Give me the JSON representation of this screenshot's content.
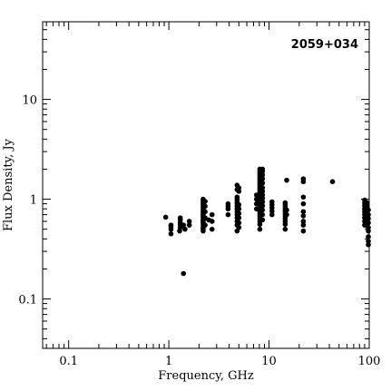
{
  "chart_data": {
    "type": "scatter",
    "title": "2059+034",
    "xlabel": "Frequency, GHz",
    "ylabel": "Flux Density, Jy",
    "xscale": "log",
    "yscale": "log",
    "xlim": [
      0.055,
      100
    ],
    "ylim": [
      0.032,
      60
    ],
    "xticklabels": [
      "0.1",
      "1",
      "10",
      "100"
    ],
    "yticklabels": [
      "0.1",
      "1",
      "10"
    ],
    "grid": false,
    "marker_color": "#000000",
    "points": [
      [
        0.93,
        0.66
      ],
      [
        1.05,
        0.45
      ],
      [
        1.05,
        0.5
      ],
      [
        1.05,
        0.53
      ],
      [
        1.05,
        0.55
      ],
      [
        1.28,
        0.48
      ],
      [
        1.3,
        0.52
      ],
      [
        1.3,
        0.55
      ],
      [
        1.3,
        0.58
      ],
      [
        1.3,
        0.62
      ],
      [
        1.3,
        0.65
      ],
      [
        1.4,
        0.18
      ],
      [
        1.4,
        0.55
      ],
      [
        1.45,
        0.5
      ],
      [
        1.6,
        0.55
      ],
      [
        1.6,
        0.6
      ],
      [
        2.2,
        0.48
      ],
      [
        2.2,
        0.5
      ],
      [
        2.2,
        0.52
      ],
      [
        2.2,
        0.55
      ],
      [
        2.2,
        0.58
      ],
      [
        2.2,
        0.6
      ],
      [
        2.2,
        0.62
      ],
      [
        2.2,
        0.65
      ],
      [
        2.2,
        0.68
      ],
      [
        2.2,
        0.7
      ],
      [
        2.2,
        0.73
      ],
      [
        2.2,
        0.76
      ],
      [
        2.2,
        0.8
      ],
      [
        2.2,
        0.84
      ],
      [
        2.2,
        0.88
      ],
      [
        2.2,
        0.92
      ],
      [
        2.2,
        0.96
      ],
      [
        2.2,
        1.0
      ],
      [
        2.3,
        0.55
      ],
      [
        2.3,
        0.65
      ],
      [
        2.3,
        0.75
      ],
      [
        2.3,
        0.85
      ],
      [
        2.3,
        0.95
      ],
      [
        2.5,
        0.62
      ],
      [
        2.7,
        0.6
      ],
      [
        2.7,
        0.5
      ],
      [
        2.7,
        0.7
      ],
      [
        3.9,
        0.7
      ],
      [
        3.9,
        0.8
      ],
      [
        3.9,
        0.85
      ],
      [
        3.9,
        0.9
      ],
      [
        4.8,
        0.48
      ],
      [
        4.8,
        0.55
      ],
      [
        4.8,
        0.6
      ],
      [
        4.8,
        0.65
      ],
      [
        4.8,
        0.7
      ],
      [
        4.8,
        0.75
      ],
      [
        4.8,
        0.8
      ],
      [
        4.8,
        0.85
      ],
      [
        4.8,
        0.9
      ],
      [
        4.8,
        0.95
      ],
      [
        4.8,
        1.0
      ],
      [
        4.8,
        1.05
      ],
      [
        4.8,
        1.25
      ],
      [
        4.8,
        1.38
      ],
      [
        5.0,
        1.3
      ],
      [
        5.0,
        0.52
      ],
      [
        5.0,
        0.58
      ],
      [
        5.0,
        0.65
      ],
      [
        5.0,
        0.72
      ],
      [
        5.0,
        0.8
      ],
      [
        5.0,
        0.88
      ],
      [
        5.0,
        1.2
      ],
      [
        7.5,
        0.8
      ],
      [
        7.5,
        0.9
      ],
      [
        7.5,
        1.0
      ],
      [
        7.5,
        1.1
      ],
      [
        8.1,
        0.5
      ],
      [
        8.1,
        0.56
      ],
      [
        8.1,
        0.6
      ],
      [
        8.1,
        0.64
      ],
      [
        8.1,
        0.68
      ],
      [
        8.1,
        0.72
      ],
      [
        8.1,
        0.76
      ],
      [
        8.1,
        0.8
      ],
      [
        8.1,
        0.84
      ],
      [
        8.1,
        0.88
      ],
      [
        8.1,
        0.92
      ],
      [
        8.1,
        0.96
      ],
      [
        8.1,
        1.0
      ],
      [
        8.1,
        1.05
      ],
      [
        8.1,
        1.1
      ],
      [
        8.1,
        1.16
      ],
      [
        8.1,
        1.22
      ],
      [
        8.1,
        1.28
      ],
      [
        8.1,
        1.34
      ],
      [
        8.1,
        1.4
      ],
      [
        8.1,
        1.47
      ],
      [
        8.1,
        1.54
      ],
      [
        8.1,
        1.61
      ],
      [
        8.1,
        1.68
      ],
      [
        8.1,
        1.75
      ],
      [
        8.1,
        1.83
      ],
      [
        8.1,
        1.91
      ],
      [
        8.1,
        2.0
      ],
      [
        8.6,
        0.62
      ],
      [
        8.6,
        0.7
      ],
      [
        8.6,
        0.78
      ],
      [
        8.6,
        0.86
      ],
      [
        8.6,
        0.94
      ],
      [
        8.6,
        1.02
      ],
      [
        8.6,
        1.1
      ],
      [
        8.6,
        1.2
      ],
      [
        8.6,
        1.3
      ],
      [
        8.6,
        1.45
      ],
      [
        8.6,
        1.6
      ],
      [
        8.6,
        1.75
      ],
      [
        8.6,
        1.9
      ],
      [
        8.6,
        2.0
      ],
      [
        10.7,
        0.7
      ],
      [
        10.7,
        0.76
      ],
      [
        10.7,
        0.82
      ],
      [
        10.7,
        0.88
      ],
      [
        10.7,
        0.94
      ],
      [
        14.5,
        0.5
      ],
      [
        14.5,
        0.56
      ],
      [
        14.5,
        0.6
      ],
      [
        14.5,
        0.64
      ],
      [
        14.5,
        0.68
      ],
      [
        14.5,
        0.72
      ],
      [
        14.5,
        0.76
      ],
      [
        14.5,
        0.8
      ],
      [
        14.5,
        0.84
      ],
      [
        14.5,
        0.88
      ],
      [
        14.5,
        0.92
      ],
      [
        15.0,
        1.55
      ],
      [
        15.0,
        0.7
      ],
      [
        15.0,
        0.78
      ],
      [
        22.0,
        0.48
      ],
      [
        22.0,
        0.55
      ],
      [
        22.0,
        0.6
      ],
      [
        22.0,
        0.68
      ],
      [
        22.0,
        0.75
      ],
      [
        22.0,
        0.9
      ],
      [
        22.0,
        1.05
      ],
      [
        22.0,
        1.5
      ],
      [
        22.0,
        1.6
      ],
      [
        43.0,
        1.5
      ],
      [
        90.0,
        0.55
      ],
      [
        90.0,
        0.6
      ],
      [
        90.0,
        0.65
      ],
      [
        90.0,
        0.7
      ],
      [
        90.0,
        0.75
      ],
      [
        90.0,
        0.8
      ],
      [
        90.0,
        0.86
      ],
      [
        90.0,
        0.92
      ],
      [
        90.0,
        0.98
      ],
      [
        95.0,
        0.6
      ],
      [
        95.0,
        0.68
      ],
      [
        95.0,
        0.76
      ],
      [
        95.0,
        0.84
      ],
      [
        95.0,
        0.92
      ],
      [
        98.0,
        0.35
      ],
      [
        98.0,
        0.38
      ],
      [
        98.0,
        0.42
      ],
      [
        98.0,
        0.48
      ],
      [
        98.0,
        0.52
      ],
      [
        98.0,
        0.58
      ],
      [
        98.0,
        0.64
      ],
      [
        98.0,
        0.7
      ],
      [
        98.0,
        0.78
      ]
    ]
  }
}
